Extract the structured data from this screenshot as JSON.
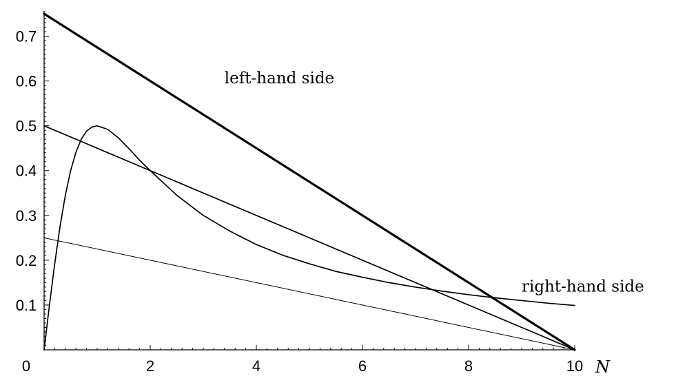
{
  "chart_data": {
    "type": "line",
    "xlabel": "N",
    "ylabel": "",
    "xlim": [
      0,
      10
    ],
    "ylim": [
      0,
      0.75
    ],
    "x_ticks": [
      {
        "value": 0,
        "label": ""
      },
      {
        "value": 2,
        "label": "2"
      },
      {
        "value": 4,
        "label": "4"
      },
      {
        "value": 6,
        "label": "6"
      },
      {
        "value": 8,
        "label": "8"
      },
      {
        "value": 10,
        "label": "10"
      }
    ],
    "y_ticks": [
      {
        "value": 0,
        "label": "0"
      },
      {
        "value": 0.1,
        "label": "0.1"
      },
      {
        "value": 0.2,
        "label": "0.2"
      },
      {
        "value": 0.3,
        "label": "0.3"
      },
      {
        "value": 0.4,
        "label": "0.4"
      },
      {
        "value": 0.5,
        "label": "0.5"
      },
      {
        "value": 0.6,
        "label": "0.6"
      },
      {
        "value": 0.7,
        "label": "0.7"
      }
    ],
    "grid": false,
    "series": [
      {
        "x": [
          0,
          10
        ],
        "y": [
          0.75,
          0
        ],
        "line_weight": "thick"
      },
      {
        "x": [
          0,
          10
        ],
        "y": [
          0.5,
          0
        ],
        "line_weight": "medium"
      },
      {
        "x": [
          0,
          10
        ],
        "y": [
          0.25,
          0
        ],
        "line_weight": "thin"
      },
      {
        "x": [
          0,
          0.1,
          0.2,
          0.3,
          0.4,
          0.5,
          0.6,
          0.7,
          0.8,
          0.9,
          1.0,
          1.2,
          1.4,
          1.6,
          1.8,
          2.0,
          2.5,
          3.0,
          3.5,
          4.0,
          4.5,
          5.0,
          5.5,
          6.0,
          6.5,
          7.0,
          7.5,
          8.0,
          8.5,
          9.0,
          9.5,
          10.0
        ],
        "y": [
          0,
          0.099,
          0.192,
          0.275,
          0.345,
          0.4,
          0.441,
          0.47,
          0.488,
          0.497,
          0.5,
          0.492,
          0.473,
          0.449,
          0.423,
          0.4,
          0.345,
          0.3,
          0.265,
          0.235,
          0.211,
          0.192,
          0.175,
          0.162,
          0.15,
          0.14,
          0.131,
          0.123,
          0.116,
          0.11,
          0.104,
          0.099
        ],
        "line_weight": "medium"
      }
    ],
    "annotations": [
      {
        "text": "left-hand side",
        "x": 3.4,
        "y": 0.595
      },
      {
        "text": "right-hand side",
        "x": 9.0,
        "y": 0.13
      }
    ]
  }
}
